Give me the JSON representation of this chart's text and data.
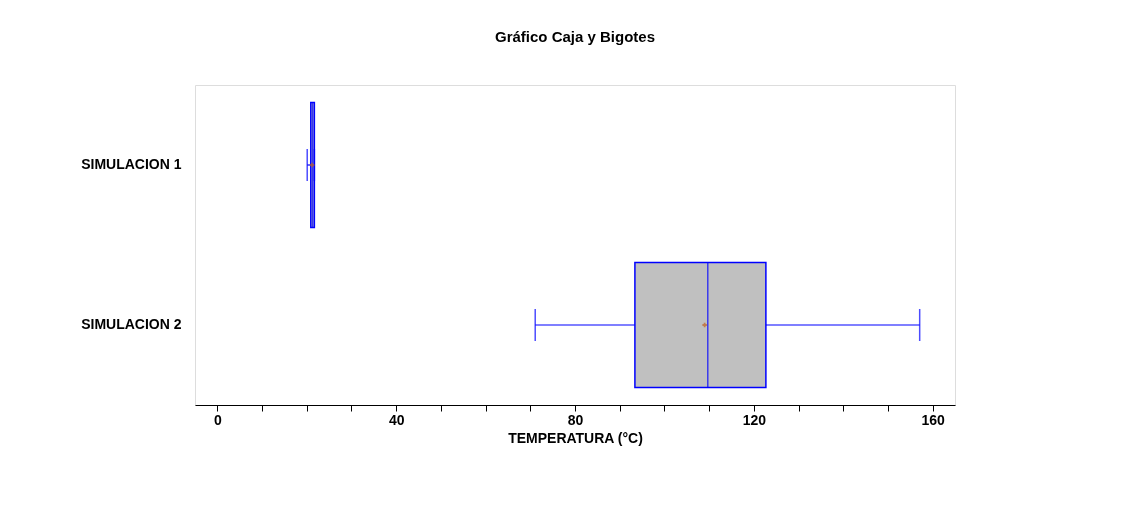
{
  "chart_data": {
    "type": "box",
    "orientation": "horizontal",
    "title": "Gráfico Caja y Bigotes",
    "xlabel": "TEMPERATURA (°C)",
    "categories": [
      "SIMULACION 1",
      "SIMULACION 2"
    ],
    "series": [
      {
        "color": "#c0c0c0",
        "boxes": [
          {
            "low": 20.1,
            "q1": 20.9,
            "median": 21.3,
            "q3": 21.7,
            "high": 21.7,
            "mean": 21.2
          },
          {
            "low": 71.1,
            "q1": 93.4,
            "median": 109.7,
            "q3": 122.7,
            "high": 157.1,
            "mean": 109
          }
        ]
      }
    ],
    "xlim": [
      -5,
      165
    ],
    "xticks": [
      0,
      {
        "value": 10,
        "label": null
      },
      {
        "value": 20,
        "label": null
      },
      {
        "value": 30,
        "label": null
      },
      40,
      {
        "value": 50,
        "label": null
      },
      {
        "value": 60,
        "label": null
      },
      {
        "value": 70,
        "label": null
      },
      80,
      {
        "value": 90,
        "label": null
      },
      {
        "value": 100,
        "label": null
      },
      {
        "value": 110,
        "label": null
      },
      120,
      {
        "value": 130,
        "label": null
      },
      {
        "value": 140,
        "label": null
      },
      {
        "value": 150,
        "label": null
      },
      160
    ],
    "grid": false
  }
}
